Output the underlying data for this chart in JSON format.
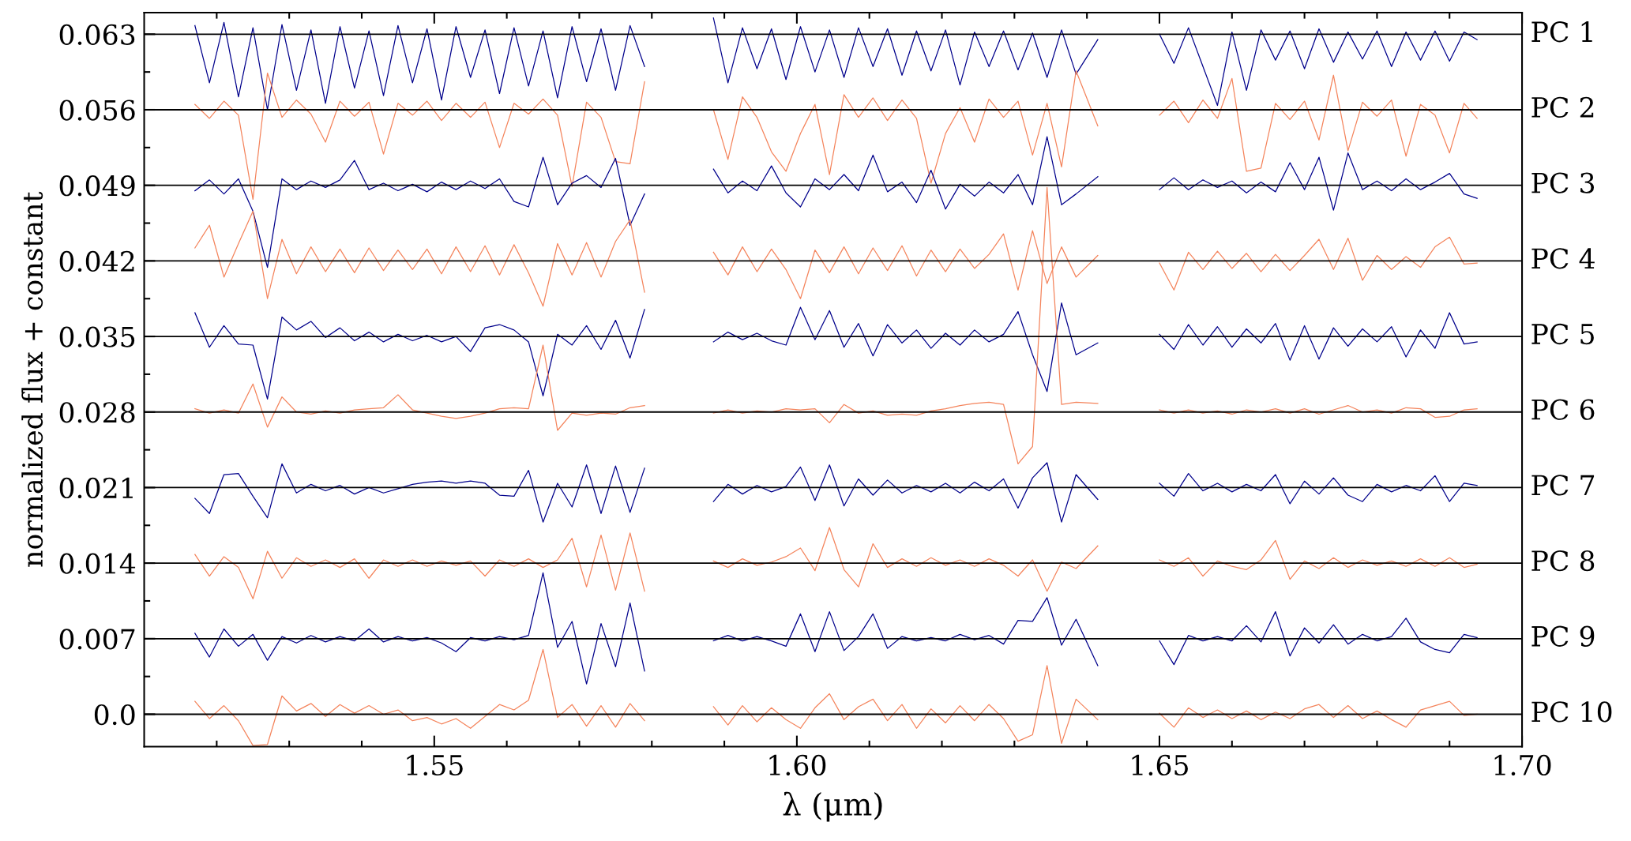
{
  "chart_data": {
    "type": "line",
    "xlabel": "λ (μm)",
    "ylabel": "normalized flux + constant",
    "line_style": "solid",
    "xlim": [
      1.51,
      1.7
    ],
    "ylim": [
      -0.003,
      0.065
    ],
    "xticks": [
      {
        "value": 1.52,
        "label": null
      },
      {
        "value": 1.53,
        "label": null
      },
      {
        "value": 1.54,
        "label": null
      },
      1.55,
      {
        "value": 1.56,
        "label": null
      },
      {
        "value": 1.57,
        "label": null
      },
      {
        "value": 1.58,
        "label": null
      },
      {
        "value": 1.59,
        "label": null
      },
      {
        "value": 1.6,
        "label": "1.60"
      },
      {
        "value": 1.61,
        "label": null
      },
      {
        "value": 1.62,
        "label": null
      },
      {
        "value": 1.63,
        "label": null
      },
      {
        "value": 1.64,
        "label": null
      },
      1.65,
      {
        "value": 1.66,
        "label": null
      },
      {
        "value": 1.67,
        "label": null
      },
      {
        "value": 1.68,
        "label": null
      },
      {
        "value": 1.69,
        "label": null
      },
      {
        "value": 1.7,
        "label": "1.70"
      }
    ],
    "yticks": [
      {
        "value": 0,
        "label": "0.0"
      },
      {
        "value": 0.0035,
        "label": null
      },
      0.007,
      {
        "value": 0.0105,
        "label": null
      },
      0.014,
      {
        "value": 0.0175,
        "label": null
      },
      0.021,
      {
        "value": 0.0245,
        "label": null
      },
      0.028,
      {
        "value": 0.0315,
        "label": null
      },
      0.035,
      {
        "value": 0.0385,
        "label": null
      },
      0.042,
      {
        "value": 0.0455,
        "label": null
      },
      0.049,
      {
        "value": 0.0525,
        "label": null
      },
      0.056,
      {
        "value": 0.0595,
        "label": null
      },
      0.063
    ],
    "x": [
      1.517,
      1.519,
      1.521,
      1.523,
      1.525,
      1.527,
      1.529,
      1.531,
      1.533,
      1.535,
      1.537,
      1.539,
      1.541,
      1.543,
      1.545,
      1.547,
      1.549,
      1.551,
      1.553,
      1.555,
      1.557,
      1.559,
      1.561,
      1.563,
      1.565,
      1.567,
      1.569,
      1.571,
      1.573,
      1.575,
      1.577,
      1.579,
      1.584,
      1.5885,
      1.5905,
      1.5925,
      1.5945,
      1.5965,
      1.5985,
      1.6005,
      1.6025,
      1.6045,
      1.6065,
      1.6085,
      1.6105,
      1.6125,
      1.6145,
      1.6165,
      1.6185,
      1.6205,
      1.6225,
      1.6245,
      1.6265,
      1.6285,
      1.6305,
      1.6325,
      1.6345,
      1.6365,
      1.6385,
      1.6415,
      1.6455,
      1.65,
      1.652,
      1.654,
      1.656,
      1.658,
      1.66,
      1.662,
      1.664,
      1.666,
      1.668,
      1.67,
      1.672,
      1.674,
      1.676,
      1.678,
      1.68,
      1.682,
      1.684,
      1.686,
      1.688,
      1.69,
      1.692,
      1.6938
    ],
    "series": [
      {
        "color": "#00008b",
        "values": [
          0.0638,
          0.0585,
          0.0641,
          0.0572,
          0.0636,
          0.056,
          0.0639,
          0.0578,
          0.0634,
          0.0566,
          0.0637,
          0.058,
          0.0633,
          0.0573,
          0.0638,
          0.0585,
          0.0635,
          0.0569,
          0.0637,
          0.059,
          0.0634,
          0.0575,
          0.0636,
          0.0582,
          0.0633,
          0.0571,
          0.0637,
          0.0586,
          0.0635,
          0.0578,
          0.0638,
          0.06,
          null,
          0.0645,
          0.0585,
          0.0636,
          0.0598,
          0.0635,
          0.0588,
          0.0637,
          0.0595,
          0.0634,
          0.059,
          0.0636,
          0.06,
          0.0635,
          0.0592,
          0.0633,
          0.0596,
          0.0634,
          0.0583,
          0.0632,
          0.06,
          0.0633,
          0.0597,
          0.0631,
          0.059,
          0.0634,
          0.0593,
          0.0625,
          null,
          0.063,
          0.0603,
          0.0636,
          0.06,
          0.0564,
          0.0632,
          0.0578,
          0.0634,
          0.0606,
          0.0633,
          0.0598,
          0.0635,
          0.0604,
          0.0632,
          0.0607,
          0.0633,
          0.06,
          0.0632,
          0.0606,
          0.0633,
          0.0605,
          0.0632,
          0.0625
        ]
      },
      {
        "color": "#f4845c",
        "values": [
          0.0565,
          0.0552,
          0.0568,
          0.0555,
          0.0477,
          0.0594,
          0.0553,
          0.0569,
          0.0556,
          0.053,
          0.0568,
          0.0554,
          0.0567,
          0.0519,
          0.0566,
          0.0555,
          0.0568,
          0.055,
          0.0566,
          0.0553,
          0.0567,
          0.0525,
          0.0566,
          0.0556,
          0.057,
          0.0555,
          0.0489,
          0.0567,
          0.0553,
          0.0512,
          0.051,
          0.0586,
          null,
          0.056,
          0.0514,
          0.0572,
          0.0553,
          0.0521,
          0.0503,
          0.0538,
          0.0565,
          0.05,
          0.0574,
          0.0553,
          0.0571,
          0.055,
          0.0569,
          0.0552,
          0.0492,
          0.0538,
          0.0562,
          0.053,
          0.057,
          0.0553,
          0.0568,
          0.0518,
          0.0566,
          0.0507,
          0.0596,
          0.0545,
          null,
          0.0555,
          0.0568,
          0.0548,
          0.0569,
          0.0552,
          0.0589,
          0.0503,
          0.0506,
          0.0566,
          0.0551,
          0.0568,
          0.0532,
          0.0592,
          0.0522,
          0.0567,
          0.0554,
          0.0569,
          0.0517,
          0.0565,
          0.0555,
          0.052,
          0.0566,
          0.0552
        ]
      },
      {
        "color": "#00008b",
        "values": [
          0.0485,
          0.0495,
          0.0482,
          0.0496,
          0.0466,
          0.0414,
          0.0496,
          0.0486,
          0.0494,
          0.0488,
          0.0495,
          0.0513,
          0.0486,
          0.0492,
          0.0485,
          0.0491,
          0.0484,
          0.0493,
          0.0486,
          0.0494,
          0.0487,
          0.0496,
          0.0475,
          0.047,
          0.0516,
          0.0472,
          0.0492,
          0.0499,
          0.0488,
          0.0515,
          0.0453,
          0.0482,
          null,
          0.0505,
          0.0483,
          0.0494,
          0.0485,
          0.0508,
          0.0483,
          0.047,
          0.0496,
          0.0486,
          0.05,
          0.0485,
          0.0518,
          0.0484,
          0.0493,
          0.0474,
          0.0504,
          0.0468,
          0.0491,
          0.048,
          0.0493,
          0.0483,
          0.05,
          0.0472,
          0.0535,
          0.0472,
          0.0482,
          0.0498,
          null,
          0.0486,
          0.0497,
          0.0486,
          0.0495,
          0.0488,
          0.0494,
          0.0483,
          0.0493,
          0.0484,
          0.0511,
          0.0486,
          0.0516,
          0.0467,
          0.052,
          0.0486,
          0.0494,
          0.0485,
          0.0496,
          0.0486,
          0.0493,
          0.0501,
          0.0482,
          0.0478
        ]
      },
      {
        "color": "#f4845c",
        "values": [
          0.0432,
          0.0453,
          0.0405,
          0.0436,
          0.0466,
          0.0385,
          0.044,
          0.0408,
          0.0433,
          0.041,
          0.0431,
          0.0409,
          0.0432,
          0.0411,
          0.043,
          0.0412,
          0.0431,
          0.0408,
          0.0433,
          0.041,
          0.0434,
          0.0407,
          0.0435,
          0.0409,
          0.0378,
          0.0436,
          0.0407,
          0.0437,
          0.0405,
          0.0438,
          0.0458,
          0.0391,
          null,
          0.0428,
          0.0407,
          0.0433,
          0.041,
          0.0431,
          0.0412,
          0.0385,
          0.043,
          0.0409,
          0.0433,
          0.0408,
          0.0432,
          0.0411,
          0.0434,
          0.0406,
          0.043,
          0.041,
          0.0431,
          0.0413,
          0.0426,
          0.0445,
          0.0393,
          0.0448,
          0.0399,
          0.0433,
          0.0405,
          0.0425,
          null,
          0.0418,
          0.0393,
          0.0428,
          0.0412,
          0.0429,
          0.0413,
          0.0427,
          0.041,
          0.0426,
          0.0411,
          0.0425,
          0.044,
          0.0412,
          0.0441,
          0.0402,
          0.0425,
          0.0412,
          0.0424,
          0.0414,
          0.0433,
          0.0442,
          0.0417,
          0.0418
        ]
      },
      {
        "color": "#00008b",
        "values": [
          0.0372,
          0.034,
          0.036,
          0.0343,
          0.0342,
          0.0292,
          0.0368,
          0.0356,
          0.0364,
          0.0349,
          0.0358,
          0.0346,
          0.0354,
          0.0345,
          0.0352,
          0.0346,
          0.0351,
          0.0345,
          0.035,
          0.0336,
          0.0358,
          0.0361,
          0.0356,
          0.0345,
          0.0295,
          0.0352,
          0.0342,
          0.036,
          0.0338,
          0.0365,
          0.033,
          0.0375,
          null,
          0.0345,
          0.0354,
          0.0347,
          0.0353,
          0.0346,
          0.0342,
          0.0377,
          0.0347,
          0.0374,
          0.034,
          0.0362,
          0.0332,
          0.0361,
          0.0344,
          0.0356,
          0.0339,
          0.0353,
          0.0342,
          0.0356,
          0.0345,
          0.0352,
          0.0373,
          0.0333,
          0.0299,
          0.0381,
          0.0333,
          0.0344,
          null,
          0.0352,
          0.0338,
          0.0361,
          0.0342,
          0.0359,
          0.034,
          0.0357,
          0.0344,
          0.0362,
          0.0328,
          0.036,
          0.0329,
          0.0358,
          0.0341,
          0.0357,
          0.0345,
          0.0359,
          0.0331,
          0.0356,
          0.0339,
          0.0372,
          0.0343,
          0.0345
        ]
      },
      {
        "color": "#f4845c",
        "values": [
          0.0283,
          0.0279,
          0.0282,
          0.0279,
          0.0306,
          0.0266,
          0.0294,
          0.028,
          0.0278,
          0.0281,
          0.0279,
          0.0282,
          0.0283,
          0.0284,
          0.0296,
          0.0282,
          0.0279,
          0.0276,
          0.0274,
          0.0276,
          0.0279,
          0.0283,
          0.0284,
          0.0283,
          0.0342,
          0.0263,
          0.0279,
          0.0277,
          0.0279,
          0.0278,
          0.0284,
          0.0286,
          null,
          0.0279,
          0.0282,
          0.0279,
          0.0281,
          0.028,
          0.0283,
          0.0282,
          0.0283,
          0.027,
          0.0287,
          0.0279,
          0.0281,
          0.0277,
          0.0278,
          0.0277,
          0.0281,
          0.0283,
          0.0286,
          0.0288,
          0.0289,
          0.0287,
          0.0232,
          0.0248,
          0.0488,
          0.0287,
          0.0289,
          0.0288,
          null,
          0.0282,
          0.0279,
          0.0282,
          0.0279,
          0.0281,
          0.0278,
          0.0282,
          0.028,
          0.0283,
          0.0279,
          0.0283,
          0.0278,
          0.0282,
          0.0286,
          0.028,
          0.0282,
          0.0279,
          0.0284,
          0.0283,
          0.0275,
          0.0276,
          0.0282,
          0.0283
        ]
      },
      {
        "color": "#00008b",
        "values": [
          0.02,
          0.0186,
          0.0222,
          0.0223,
          0.0202,
          0.0182,
          0.0232,
          0.0205,
          0.0213,
          0.0207,
          0.0212,
          0.0204,
          0.021,
          0.0205,
          0.0209,
          0.0213,
          0.0215,
          0.0216,
          0.0214,
          0.0216,
          0.0214,
          0.0203,
          0.0202,
          0.0226,
          0.0178,
          0.0214,
          0.0192,
          0.0231,
          0.0186,
          0.023,
          0.0187,
          0.0228,
          null,
          0.0197,
          0.0213,
          0.0204,
          0.0212,
          0.0206,
          0.0211,
          0.0229,
          0.0198,
          0.0231,
          0.0193,
          0.0218,
          0.0203,
          0.0217,
          0.0205,
          0.0212,
          0.0206,
          0.0214,
          0.0205,
          0.0215,
          0.0207,
          0.0218,
          0.0191,
          0.0219,
          0.0233,
          0.0178,
          0.0222,
          0.0199,
          null,
          0.0214,
          0.0202,
          0.0223,
          0.0207,
          0.0214,
          0.0206,
          0.0213,
          0.0207,
          0.0222,
          0.0195,
          0.0216,
          0.0204,
          0.0219,
          0.0203,
          0.0197,
          0.0213,
          0.0206,
          0.0212,
          0.0207,
          0.0221,
          0.0197,
          0.0214,
          0.0212
        ]
      },
      {
        "color": "#f4845c",
        "values": [
          0.0148,
          0.0128,
          0.0146,
          0.0136,
          0.0107,
          0.0151,
          0.0126,
          0.0145,
          0.0137,
          0.0143,
          0.0136,
          0.0144,
          0.0126,
          0.0143,
          0.0137,
          0.0143,
          0.0137,
          0.0142,
          0.0138,
          0.0142,
          0.0128,
          0.0143,
          0.0137,
          0.0144,
          0.0136,
          0.0143,
          0.0163,
          0.0118,
          0.0166,
          0.0115,
          0.0168,
          0.0114,
          null,
          0.0142,
          0.0136,
          0.0144,
          0.0138,
          0.0141,
          0.0146,
          0.0154,
          0.0133,
          0.0173,
          0.0134,
          0.0118,
          0.0158,
          0.0136,
          0.0144,
          0.0137,
          0.0145,
          0.0138,
          0.0143,
          0.0137,
          0.0144,
          0.0138,
          0.0128,
          0.0143,
          0.0114,
          0.0141,
          0.0135,
          0.0156,
          null,
          0.0143,
          0.0137,
          0.0145,
          0.0128,
          0.0142,
          0.0137,
          0.0134,
          0.0143,
          0.0161,
          0.0125,
          0.0142,
          0.0135,
          0.0145,
          0.0136,
          0.0143,
          0.0138,
          0.0142,
          0.0137,
          0.0144,
          0.0137,
          0.0145,
          0.0136,
          0.0139
        ]
      },
      {
        "color": "#00008b",
        "values": [
          0.0075,
          0.0053,
          0.0079,
          0.0063,
          0.0074,
          0.005,
          0.0072,
          0.0066,
          0.0073,
          0.0067,
          0.0072,
          0.0068,
          0.0079,
          0.0067,
          0.0072,
          0.0068,
          0.0071,
          0.0066,
          0.0058,
          0.0071,
          0.0068,
          0.0072,
          0.0069,
          0.0073,
          0.0131,
          0.0062,
          0.0086,
          0.0028,
          0.0084,
          0.0044,
          0.0103,
          0.004,
          null,
          0.0068,
          0.0073,
          0.0068,
          0.0072,
          0.0068,
          0.0063,
          0.0093,
          0.0058,
          0.0095,
          0.0059,
          0.0072,
          0.0093,
          0.0061,
          0.0072,
          0.0068,
          0.0071,
          0.0068,
          0.0074,
          0.0069,
          0.0073,
          0.0065,
          0.0087,
          0.0086,
          0.0108,
          0.0064,
          0.0088,
          0.0045,
          null,
          0.0068,
          0.0046,
          0.0073,
          0.0068,
          0.0072,
          0.0068,
          0.0082,
          0.0067,
          0.0095,
          0.0054,
          0.008,
          0.0066,
          0.0083,
          0.0065,
          0.0074,
          0.0068,
          0.0072,
          0.0089,
          0.0067,
          0.006,
          0.0057,
          0.0074,
          0.0071
        ]
      },
      {
        "color": "#f4845c",
        "values": [
          0.0012,
          -0.0004,
          0.0008,
          -0.0006,
          -0.0029,
          -0.0028,
          0.0017,
          0.0003,
          0.001,
          -0.0002,
          0.0009,
          0.0001,
          0.0008,
          0.0,
          0.0004,
          -0.0006,
          -0.0003,
          -0.0009,
          -0.0004,
          -0.0013,
          -0.0002,
          0.0009,
          0.0004,
          0.0013,
          0.006,
          -0.0003,
          0.0009,
          -0.0011,
          0.0008,
          -0.0012,
          0.001,
          -0.0006,
          null,
          0.0007,
          -0.001,
          0.0008,
          -0.0007,
          0.0006,
          -0.0005,
          -0.0013,
          0.0006,
          0.0019,
          -0.0005,
          0.0007,
          0.0014,
          -0.0006,
          0.0009,
          -0.0013,
          0.0005,
          -0.0008,
          0.0008,
          -0.0006,
          0.0009,
          -0.0004,
          -0.0025,
          -0.0019,
          0.0045,
          -0.0027,
          0.0014,
          -0.0005,
          null,
          0.0001,
          -0.0012,
          0.0006,
          -0.0003,
          0.0004,
          -0.0004,
          0.0003,
          -0.0005,
          0.0002,
          -0.0004,
          0.0005,
          0.0009,
          -0.0003,
          0.0008,
          -0.0004,
          0.0003,
          -0.0005,
          -0.0012,
          0.0004,
          0.0008,
          0.0012,
          -0.0001,
          0.0
        ]
      }
    ],
    "ref_lines": [
      {
        "axis": "y",
        "value": 0.063,
        "label": "PC 1",
        "color": "#000000"
      },
      {
        "axis": "y",
        "value": 0.056,
        "label": "PC 2",
        "color": "#000000"
      },
      {
        "axis": "y",
        "value": 0.049,
        "label": "PC 3",
        "color": "#000000"
      },
      {
        "axis": "y",
        "value": 0.042,
        "label": "PC 4",
        "color": "#000000"
      },
      {
        "axis": "y",
        "value": 0.035,
        "label": "PC 5",
        "color": "#000000"
      },
      {
        "axis": "y",
        "value": 0.028,
        "label": "PC 6",
        "color": "#000000"
      },
      {
        "axis": "y",
        "value": 0.021,
        "label": "PC 7",
        "color": "#000000"
      },
      {
        "axis": "y",
        "value": 0.014,
        "label": "PC 8",
        "color": "#000000"
      },
      {
        "axis": "y",
        "value": 0.007,
        "label": "PC 9",
        "color": "#000000"
      },
      {
        "axis": "y",
        "value": 0,
        "label": "PC 10",
        "color": "#000000"
      }
    ]
  }
}
